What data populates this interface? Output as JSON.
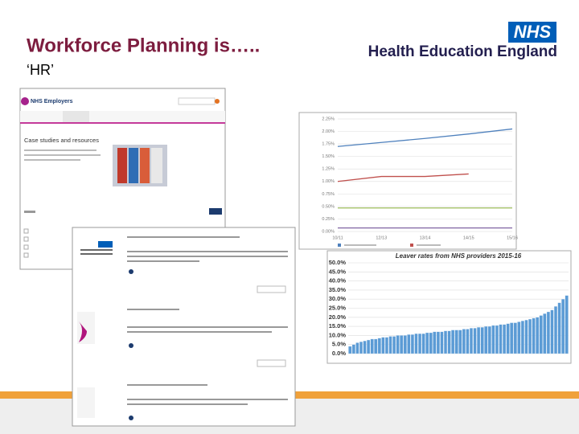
{
  "header": {
    "title": "Workforce Planning is…..",
    "subtitle": "‘HR’",
    "logo": "NHS",
    "org": "Health Education England"
  },
  "employers_page": {
    "brand": "NHS Employers",
    "heading": "Case studies and resources"
  },
  "trend_chart": {
    "type": "line",
    "x": [
      "10/11",
      "12/13",
      "13/14",
      "14/15",
      "15/16"
    ],
    "ylim": [
      0,
      2.25
    ],
    "yticks": [
      {
        "value": 0,
        "label": "0.00%"
      },
      {
        "value": 0.25,
        "label": "0.25%"
      },
      {
        "value": 0.5,
        "label": "0.50%"
      },
      {
        "value": 0.75,
        "label": "0.75%"
      },
      {
        "value": 1,
        "label": "1.00%"
      },
      {
        "value": 1.25,
        "label": "1.25%"
      },
      {
        "value": 1.5,
        "label": "1.50%"
      },
      {
        "value": 1.75,
        "label": "1.75%"
      },
      {
        "value": 2,
        "label": "2.00%"
      },
      {
        "value": 2.25,
        "label": "2.25%"
      }
    ],
    "grid": true,
    "series": [
      {
        "color": "#4f81bd",
        "values": [
          1.7,
          1.78,
          1.86,
          1.95,
          2.05
        ]
      },
      {
        "color": "#c0504d",
        "values": [
          1.0,
          1.1,
          1.1,
          1.15,
          null
        ]
      },
      {
        "color": "#9bbb59",
        "values": [
          0.47,
          0.47,
          0.47,
          0.47,
          0.47
        ]
      },
      {
        "color": "#8064a2",
        "values": [
          0.07,
          0.07,
          0.07,
          0.07,
          0.07
        ]
      }
    ]
  },
  "leaver_chart": {
    "type": "bar",
    "title": "Leaver rates from NHS providers 2015-16",
    "color": "#5b9bd5",
    "ylim": [
      0,
      50
    ],
    "yticks": [
      {
        "value": 0,
        "label": "0.0%"
      },
      {
        "value": 5,
        "label": "5.0%"
      },
      {
        "value": 10,
        "label": "10.0%"
      },
      {
        "value": 15,
        "label": "15.0%"
      },
      {
        "value": 20,
        "label": "20.0%"
      },
      {
        "value": 25,
        "label": "25.0%"
      },
      {
        "value": 30,
        "label": "30.0%"
      },
      {
        "value": 35,
        "label": "35.0%"
      },
      {
        "value": 40,
        "label": "40.0%"
      },
      {
        "value": 45,
        "label": "45.0%"
      },
      {
        "value": 50,
        "label": "50.0%"
      }
    ],
    "grid": true,
    "values": [
      4,
      5,
      6,
      6.5,
      7,
      7.5,
      8,
      8,
      8.5,
      9,
      9,
      9.5,
      9.5,
      10,
      10,
      10,
      10.5,
      10.5,
      11,
      11,
      11,
      11.5,
      11.5,
      12,
      12,
      12,
      12.5,
      12.5,
      13,
      13,
      13,
      13.5,
      13.5,
      14,
      14,
      14.5,
      14.5,
      15,
      15,
      15.5,
      15.5,
      16,
      16,
      16.5,
      17,
      17,
      17.5,
      18,
      18.5,
      19,
      19.5,
      20,
      21,
      22,
      23,
      24,
      26,
      28,
      30,
      32
    ]
  }
}
